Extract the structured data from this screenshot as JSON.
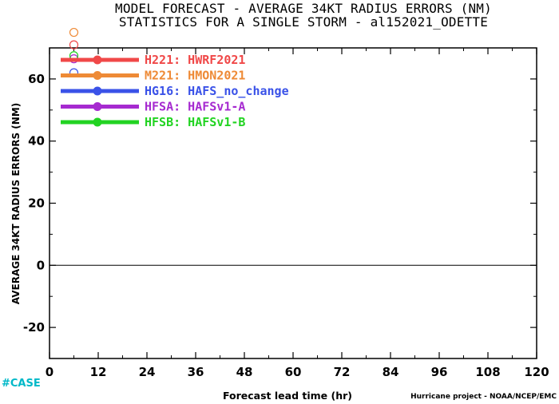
{
  "chart_data": {
    "type": "line",
    "title": "MODEL FORECAST - AVERAGE 34KT RADIUS ERRORS (NM)",
    "subtitle": "STATISTICS FOR A SINGLE STORM - al152021_ODETTE",
    "xlabel": "Forecast lead time (hr)",
    "ylabel": "AVERAGE 34KT RADIUS ERRORS (NM)",
    "xlim": [
      0,
      120
    ],
    "ylim": [
      -30,
      70
    ],
    "xticks": [
      0,
      12,
      24,
      36,
      48,
      60,
      72,
      84,
      96,
      108,
      120
    ],
    "yticks": [
      -20,
      0,
      20,
      40,
      60
    ],
    "zero_line": true,
    "legend_position": "top-left",
    "series": [
      {
        "code": "H221",
        "name": "HWRF2021",
        "color": "#f04848",
        "x": [
          6
        ],
        "y": [
          71
        ]
      },
      {
        "code": "M221",
        "name": "HMON2021",
        "color": "#ee8a36",
        "x": [
          6
        ],
        "y": [
          75
        ]
      },
      {
        "code": "HG16",
        "name": "HAFS_no_change",
        "color": "#3a52e8",
        "x": [
          6
        ],
        "y": [
          62
        ]
      },
      {
        "code": "HFSA",
        "name": "HAFSv1-A",
        "color": "#a62ad0",
        "x": [
          6
        ],
        "y": [
          66.5
        ]
      },
      {
        "code": "HFSB",
        "name": "HAFSv1-B",
        "color": "#22d322",
        "x": [
          6
        ],
        "y": [
          67.5
        ]
      }
    ]
  },
  "footer": {
    "credit": "Hurricane project - NOAA/NCEP/EMC",
    "tag": "#CASE"
  }
}
